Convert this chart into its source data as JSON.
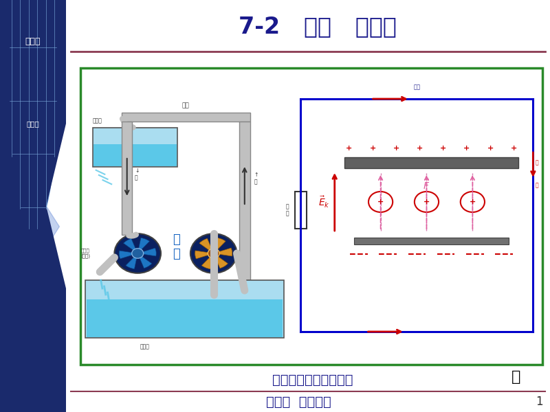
{
  "title": "7-2   电源   电动势",
  "title_color": "#1a1a8c",
  "title_fontsize": 24,
  "title_line_color": "#8b3a52",
  "header_left_line1": "物理学",
  "header_left_line2": "第五版",
  "footer_text": "第七章  恒定磁场",
  "footer_color": "#1a1a8c",
  "footer_fontsize": 14,
  "page_number": "1",
  "bg_color": "#f0f0f0",
  "diagram_box_color": "#2a8a2a",
  "diagram_caption": "电源和水泵作用的类比",
  "diagram_caption_color": "#1a1a8c",
  "diagram_caption_fontsize": 14,
  "diagram_bg": "#ffffff",
  "circuit_blue": "#0000cc",
  "circuit_red": "#cc0000",
  "sidebar_dark": "#1a2a6c",
  "sidebar_mid": "#2a4a9c",
  "sidebar_light": "#3a6acc"
}
